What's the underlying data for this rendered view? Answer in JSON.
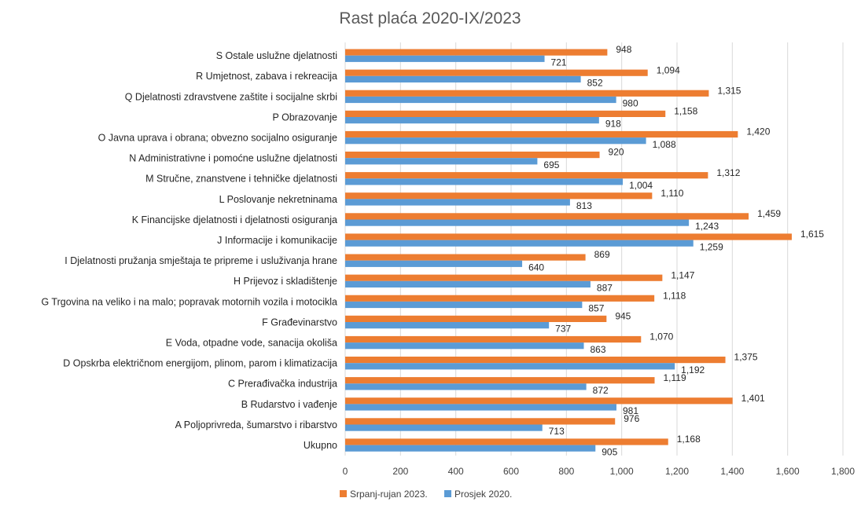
{
  "chart_data": {
    "type": "bar",
    "orientation": "horizontal",
    "title": "Rast plaća 2020-IX/2023",
    "xlabel": "",
    "ylabel": "",
    "xlim": [
      0,
      1800
    ],
    "x_ticks": [
      "0",
      "200",
      "400",
      "600",
      "800",
      "1,000",
      "1,200",
      "1,400",
      "1,600",
      "1,800"
    ],
    "grid": "vertical",
    "legend_position": "bottom",
    "categories": [
      "S  Ostale uslužne djelatnosti",
      "R  Umjetnost, zabava i rekreacija",
      "Q  Djelatnosti zdravstvene zaštite i socijalne skrbi",
      "P  Obrazovanje",
      "O  Javna uprava i obrana; obvezno socijalno osiguranje",
      "N  Administrativne i pomoćne uslužne djelatnosti",
      "M  Stručne, znanstvene i tehničke djelatnosti",
      "L  Poslovanje nekretninama",
      "K  Financijske djelatnosti i djelatnosti osiguranja",
      "J  Informacije i komunikacije",
      "I  Djelatnosti pružanja smještaja te pripreme i usluživanja hrane",
      "H  Prijevoz i skladištenje",
      "G  Trgovina na veliko i na malo; popravak motornih vozila i motocikla",
      "F  Građevinarstvo",
      "E  Voda, otpadne vode, sanacija okoliša",
      "D  Opskrba električnom energijom, plinom, parom i klimatizacija",
      "C  Prerađivačka industrija",
      "B  Rudarstvo i vađenje",
      "A  Poljoprivreda, šumarstvo i ribarstvo",
      "Ukupno"
    ],
    "series": [
      {
        "name": "Srpanj-rujan 2023.",
        "color": "#ED7D31",
        "values": [
          948,
          1094,
          1315,
          1158,
          1420,
          920,
          1312,
          1110,
          1459,
          1615,
          869,
          1147,
          1118,
          945,
          1070,
          1375,
          1119,
          1401,
          976,
          1168
        ],
        "labels": [
          "948",
          "1,094",
          "1,315",
          "1,158",
          "1,420",
          "920",
          "1,312",
          "1,110",
          "1,459",
          "1,615",
          "869",
          "1,147",
          "1,118",
          "945",
          "1,070",
          "1,375",
          "1,119",
          "1,401",
          "976",
          "1,168"
        ]
      },
      {
        "name": "Prosjek 2020.",
        "color": "#5B9BD5",
        "values": [
          721,
          852,
          980,
          918,
          1088,
          695,
          1004,
          813,
          1243,
          1259,
          640,
          887,
          857,
          737,
          863,
          1192,
          872,
          981,
          713,
          905
        ],
        "labels": [
          "721",
          "852",
          "980",
          "918",
          "1,088",
          "695",
          "1,004",
          "813",
          "1,243",
          "1,259",
          "640",
          "887",
          "857",
          "737",
          "863",
          "1,192",
          "872",
          "981",
          "713",
          "905"
        ]
      }
    ]
  }
}
